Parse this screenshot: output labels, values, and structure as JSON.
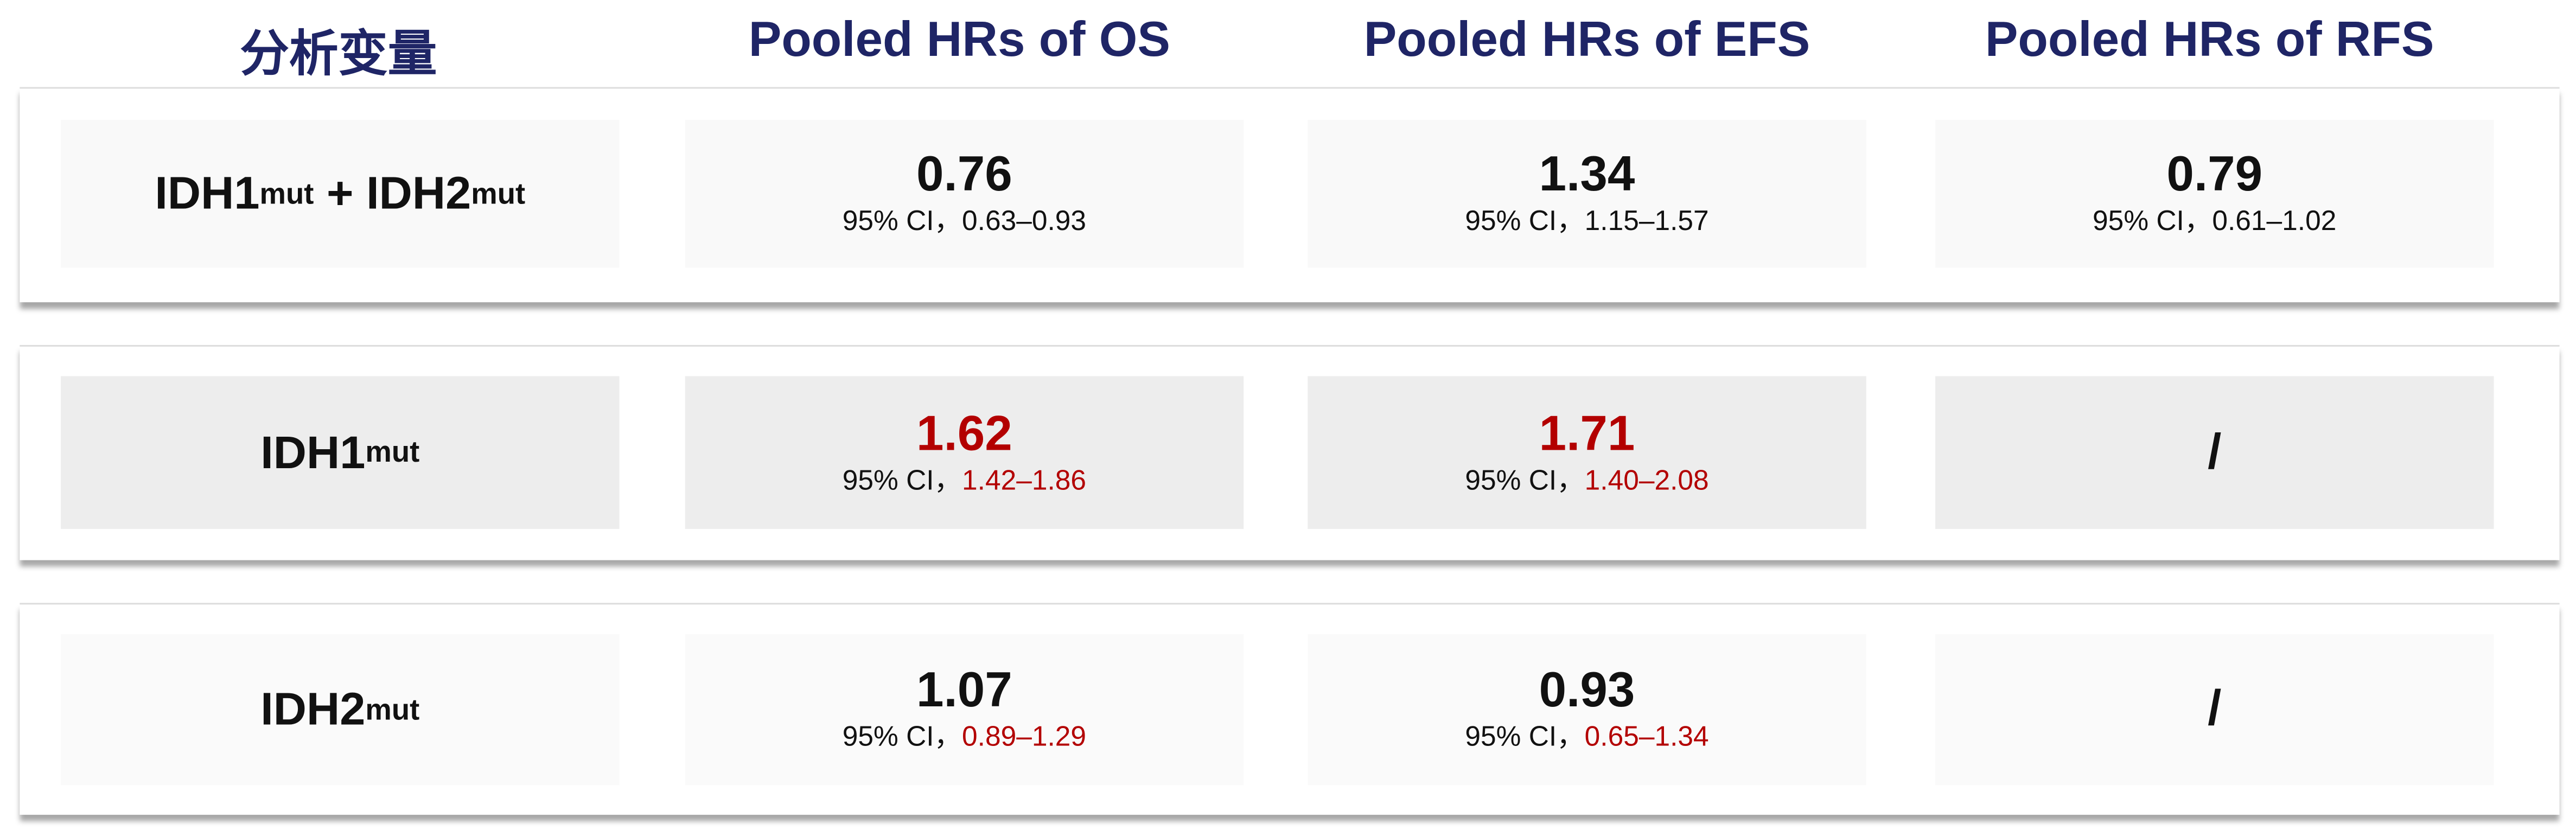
{
  "headers": [
    "分析变量",
    "Pooled HRs of OS",
    "Pooled HRs of EFS",
    "Pooled HRs of RFS"
  ],
  "colors": {
    "header": "#1f2566",
    "highlight": "#b30000"
  },
  "rows": [
    {
      "label": {
        "parts": [
          {
            "base": "IDH1",
            "sup": "mut"
          },
          {
            "sep": " + "
          },
          {
            "base": "IDH2",
            "sup": "mut"
          }
        ]
      },
      "cells": [
        {
          "value": "0.76",
          "ci_prefix": "95% CI，",
          "ci": "0.63–0.93",
          "highlight": false,
          "ci_highlight": false
        },
        {
          "value": "1.34",
          "ci_prefix": "95% CI，",
          "ci": "1.15–1.57",
          "highlight": false,
          "ci_highlight": false
        },
        {
          "value": "0.79",
          "ci_prefix": "95% CI，",
          "ci": "0.61–1.02",
          "highlight": false,
          "ci_highlight": false
        }
      ]
    },
    {
      "label": {
        "base": "IDH1",
        "sup": "mut"
      },
      "cells": [
        {
          "value": "1.62",
          "ci_prefix": "95% CI，",
          "ci": "1.42–1.86",
          "highlight": true,
          "ci_highlight": true
        },
        {
          "value": "1.71",
          "ci_prefix": "95% CI，",
          "ci": "1.40–2.08",
          "highlight": true,
          "ci_highlight": true
        },
        {
          "value": "/"
        }
      ]
    },
    {
      "label": {
        "base": "IDH2",
        "sup": "mut"
      },
      "cells": [
        {
          "value": "1.07",
          "ci_prefix": "95% CI，",
          "ci": "0.89–1.29",
          "highlight": false,
          "ci_highlight": true
        },
        {
          "value": "0.93",
          "ci_prefix": "95% CI，",
          "ci": "0.65–1.34",
          "highlight": false,
          "ci_highlight": true
        },
        {
          "value": "/"
        }
      ]
    }
  ]
}
